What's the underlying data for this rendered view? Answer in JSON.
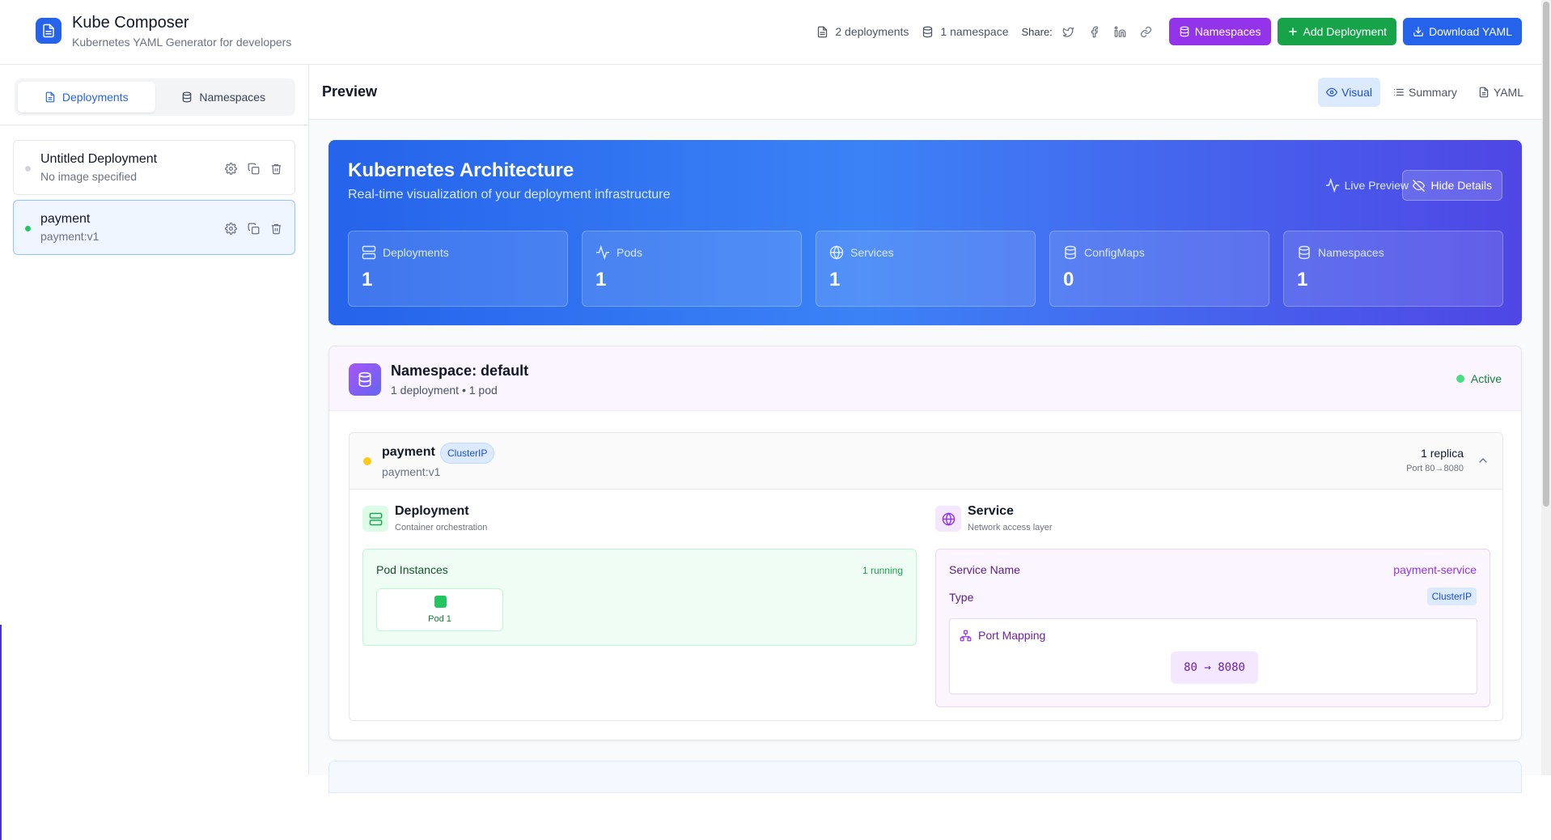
{
  "app": {
    "title": "Kube Composer",
    "subtitle": "Kubernetes YAML Generator for developers"
  },
  "header": {
    "deployments_count": "2 deployments",
    "namespace_count": "1 namespace",
    "share_label": "Share:",
    "share_icons": [
      "twitter-icon",
      "facebook-icon",
      "linkedin-icon",
      "link-icon"
    ],
    "buttons": {
      "namespaces": "Namespaces",
      "add_deployment": "Add Deployment",
      "download_yaml": "Download YAML"
    }
  },
  "sidebar": {
    "tabs": [
      {
        "label": "Deployments",
        "active": true
      },
      {
        "label": "Namespaces",
        "active": false
      }
    ],
    "deployments": [
      {
        "name": "Untitled Deployment",
        "image": "No image specified",
        "status_color": "#d1d5db",
        "selected": false
      },
      {
        "name": "payment",
        "image": "payment:v1",
        "status_color": "#22c55e",
        "selected": true
      }
    ]
  },
  "preview": {
    "title": "Preview",
    "view_tabs": [
      {
        "label": "Visual",
        "active": true
      },
      {
        "label": "Summary",
        "active": false
      },
      {
        "label": "YAML",
        "active": false
      }
    ]
  },
  "architecture": {
    "title": "Kubernetes Architecture",
    "subtitle": "Real-time visualization of your deployment infrastructure",
    "live_label": "Live Preview",
    "hide_details_label": "Hide Details",
    "stats": [
      {
        "label": "Deployments",
        "value": "1",
        "icon": "server-icon"
      },
      {
        "label": "Pods",
        "value": "1",
        "icon": "activity-icon"
      },
      {
        "label": "Services",
        "value": "1",
        "icon": "globe-icon"
      },
      {
        "label": "ConfigMaps",
        "value": "0",
        "icon": "database-icon"
      },
      {
        "label": "Namespaces",
        "value": "1",
        "icon": "database-icon"
      }
    ]
  },
  "namespace": {
    "title": "Namespace: default",
    "summary": "1 deployment • 1 pod",
    "status": "Active",
    "deployment": {
      "name": "payment",
      "service_type_badge": "ClusterIP",
      "image": "payment:v1",
      "replicas": "1 replica",
      "port_summary": "Port 80→8080",
      "deployment_section": {
        "title": "Deployment",
        "subtitle": "Container orchestration",
        "pod_instances_label": "Pod Instances",
        "running_label": "1 running",
        "pods": [
          "Pod 1"
        ]
      },
      "service_section": {
        "title": "Service",
        "subtitle": "Network access layer",
        "service_name_label": "Service Name",
        "service_name_value": "payment-service",
        "type_label": "Type",
        "type_value": "ClusterIP",
        "port_mapping_label": "Port Mapping",
        "port_mapping_value": "80 → 8080"
      }
    }
  },
  "colors": {
    "primary": "#2563eb",
    "purple": "#9333ea",
    "green": "#16a34a"
  }
}
